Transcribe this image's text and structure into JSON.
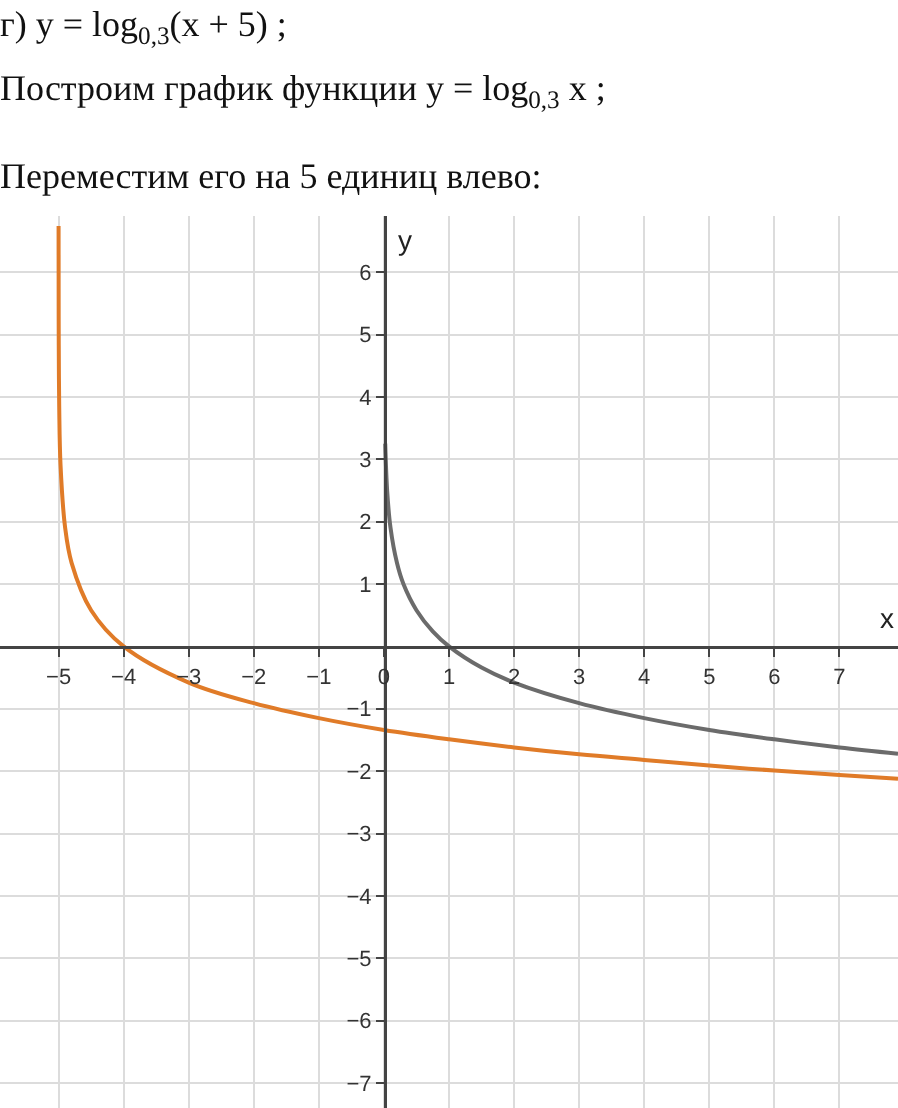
{
  "chart_data": {
    "type": "line",
    "title": "г) y = log$_{0,3}$(x + 5) ;",
    "subtitle": "Построим график функции y = log$_{0,3}$ x ;",
    "annotations": [
      "Переместим его на 5 единиц влево:"
    ],
    "xlabel": "x",
    "ylabel": "y",
    "xlim": [
      -5.9,
      7.9
    ],
    "ylim": [
      -7.4,
      6.9
    ],
    "xticks": [
      -5,
      -4,
      -3,
      -2,
      -1,
      0,
      1,
      2,
      3,
      4,
      5,
      6,
      7
    ],
    "yticks": [
      -7,
      -6,
      -5,
      -4,
      -3,
      -2,
      -1,
      1,
      2,
      3,
      4,
      5,
      6
    ],
    "grid": true,
    "series": [
      {
        "color": "#6b6b6b",
        "x": [
          0.02,
          0.05,
          0.1,
          0.2,
          0.3,
          0.5,
          0.75,
          1,
          1.5,
          2,
          3,
          4,
          5,
          6,
          7,
          7.9
        ],
        "values": [
          3.25,
          2.49,
          1.91,
          1.34,
          1,
          0.58,
          0.24,
          0,
          -0.34,
          -0.58,
          -0.91,
          -1.15,
          -1.34,
          -1.49,
          -1.62,
          -1.72
        ]
      },
      {
        "color": "#e07b28",
        "x": [
          -4.9997,
          -4.999,
          -4.997,
          -4.99,
          -4.97,
          -4.9,
          -4.8,
          -4.5,
          -4,
          -3,
          -2,
          -1,
          0,
          1,
          2,
          3,
          4,
          5,
          6,
          7,
          7.9
        ],
        "values": [
          6.74,
          5.74,
          4.83,
          3.83,
          2.91,
          1.91,
          1.34,
          0.58,
          0,
          -0.58,
          -0.91,
          -1.15,
          -1.34,
          -1.49,
          -1.62,
          -1.73,
          -1.82,
          -1.91,
          -1.99,
          -2.06,
          -2.12
        ]
      }
    ]
  }
}
